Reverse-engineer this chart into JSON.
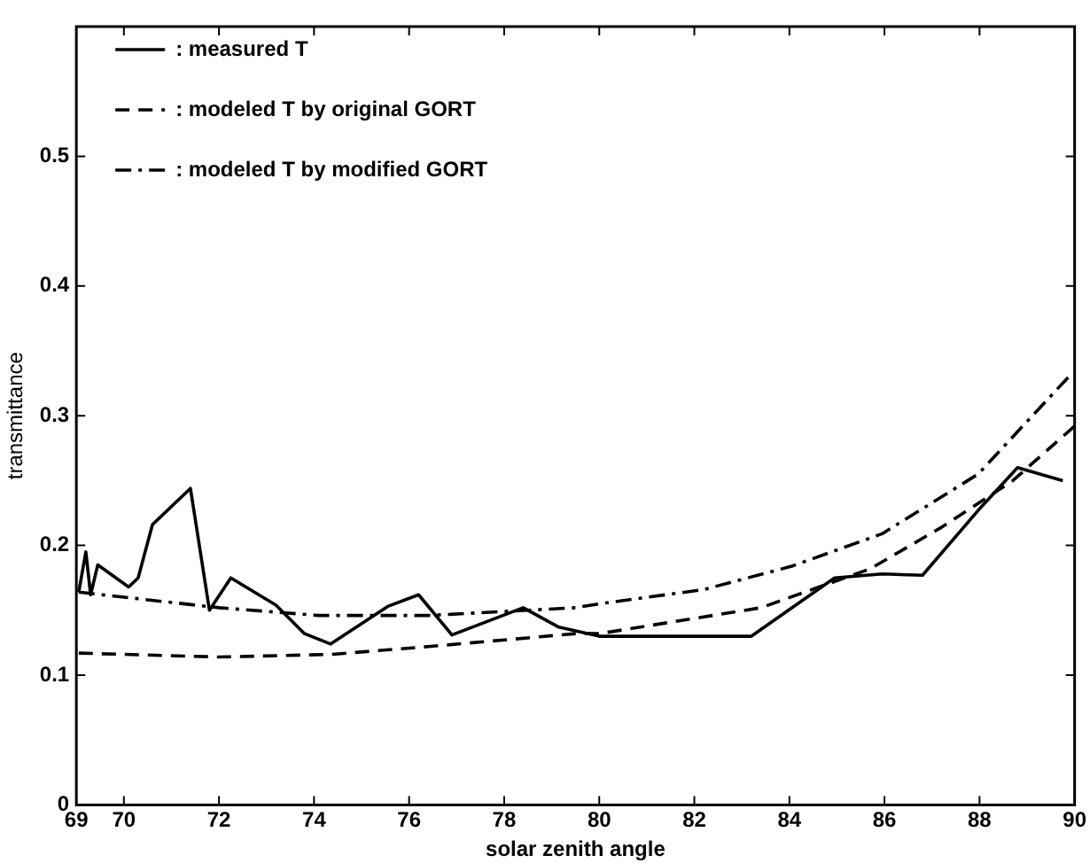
{
  "chart_data": {
    "type": "line",
    "xlabel": "solar zenith angle",
    "ylabel": "transmittance",
    "xlim": [
      69,
      90
    ],
    "xticks": [
      69,
      70,
      72,
      74,
      76,
      78,
      80,
      82,
      84,
      86,
      88,
      90
    ],
    "ylim": [
      0,
      0.6
    ],
    "yticks": [
      0,
      0.1,
      0.2,
      0.3,
      0.4,
      0.5
    ],
    "grid": false,
    "legend": "top left",
    "marker": "none",
    "series": [
      {
        "name": ": measured T",
        "color": "#000000",
        "line_style": "solid",
        "x": [
          69.05,
          69.2,
          69.3,
          69.45,
          70.1,
          70.3,
          70.6,
          71.4,
          71.8,
          72.25,
          73.2,
          73.8,
          74.35,
          75.55,
          76.2,
          76.9,
          78.4,
          79.15,
          80.0,
          83.2,
          84.95,
          85.95,
          86.8,
          87.97,
          88.8,
          89.75
        ],
        "values": [
          0.164,
          0.195,
          0.162,
          0.185,
          0.168,
          0.175,
          0.216,
          0.244,
          0.15,
          0.175,
          0.154,
          0.132,
          0.124,
          0.153,
          0.162,
          0.131,
          0.152,
          0.137,
          0.13,
          0.13,
          0.175,
          0.178,
          0.177,
          0.227,
          0.26,
          0.25
        ]
      },
      {
        "name": ": modeled T by original GORT",
        "color": "#000000",
        "line_style": "dashed",
        "x": [
          69.05,
          72.0,
          74.35,
          76.4,
          79.5,
          80.0,
          83.4,
          85.7,
          87.2,
          88.7,
          90
        ],
        "values": [
          0.117,
          0.114,
          0.116,
          0.122,
          0.132,
          0.132,
          0.152,
          0.182,
          0.214,
          0.25,
          0.292
        ]
      },
      {
        "name": ": modeled T by modified GORT",
        "color": "#000000",
        "line_style": "dashdot",
        "x": [
          69.05,
          72.0,
          74.1,
          76.4,
          79.5,
          80.0,
          82.2,
          84.05,
          85.95,
          87.97,
          89.9
        ],
        "values": [
          0.164,
          0.152,
          0.146,
          0.146,
          0.152,
          0.155,
          0.166,
          0.184,
          0.209,
          0.255,
          0.331
        ]
      }
    ]
  }
}
